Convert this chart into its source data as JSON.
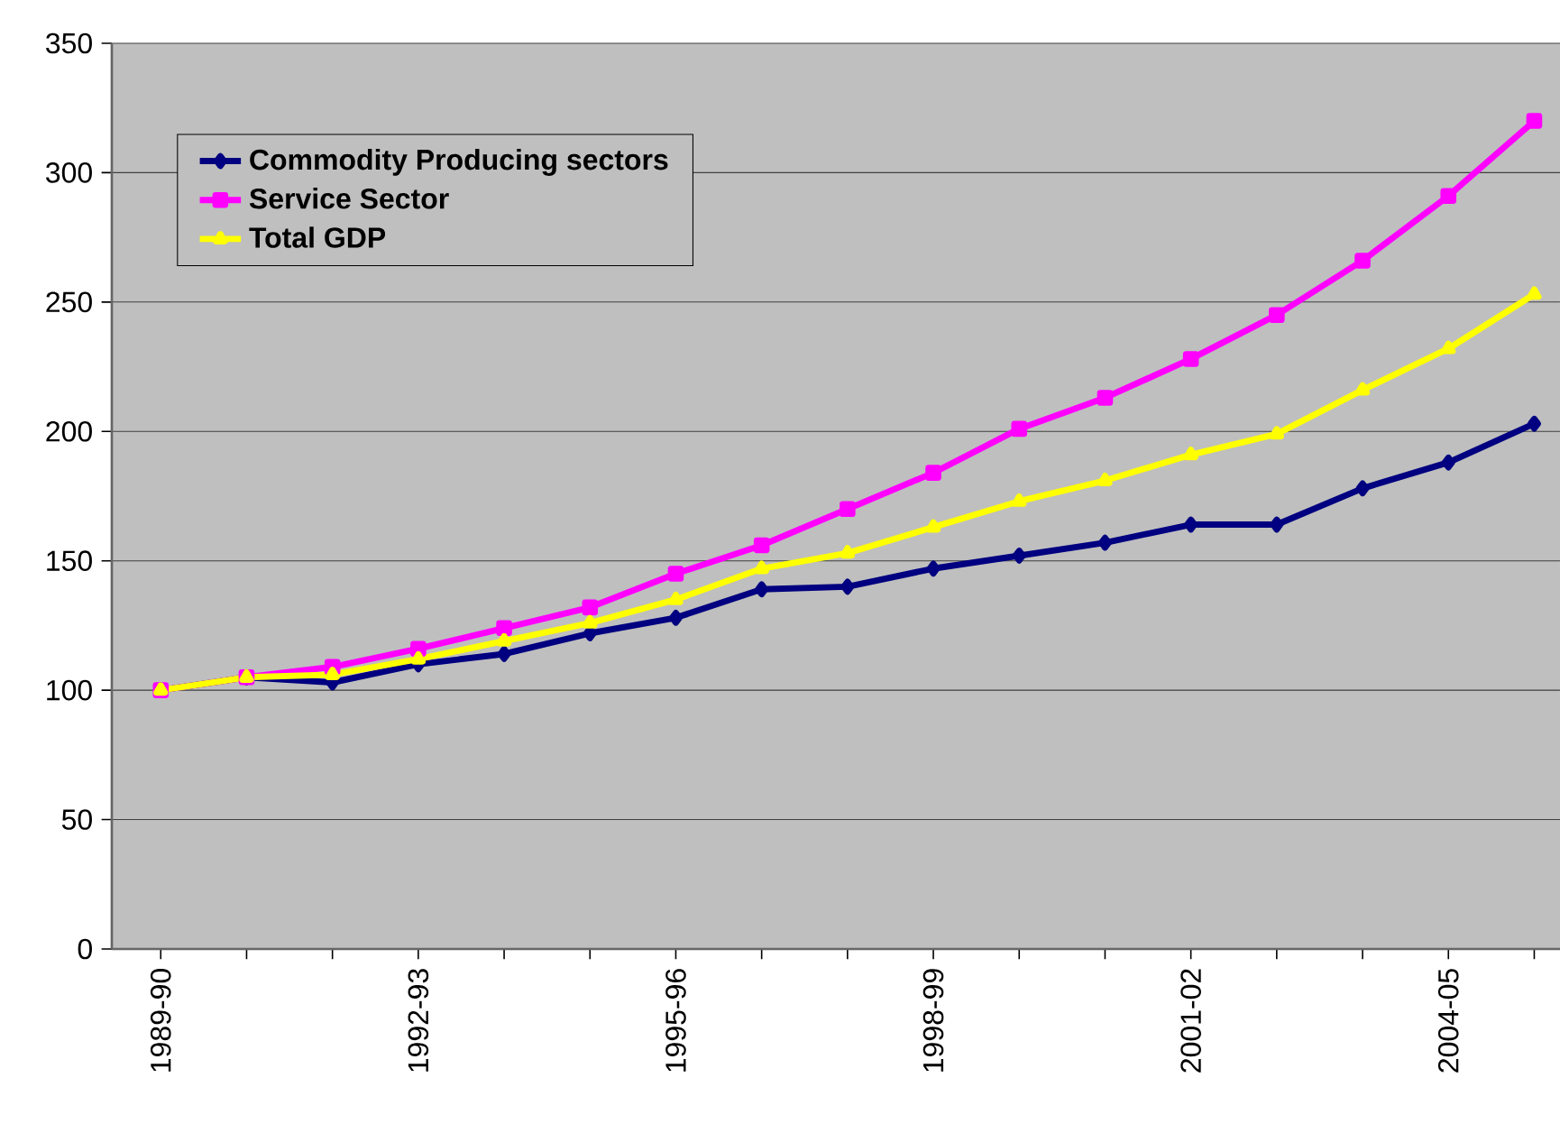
{
  "chart_data": {
    "type": "line",
    "categories": [
      "1989-90",
      null,
      null,
      "1992-93",
      null,
      null,
      "1995-96",
      null,
      null,
      "1998-99",
      null,
      null,
      "2001-02",
      null,
      null,
      "2004-05",
      null
    ],
    "series": [
      {
        "name": "Commodity Producing sectors",
        "color": "#000080",
        "marker": "diamond",
        "values": [
          100,
          105,
          103,
          110,
          114,
          122,
          128,
          139,
          140,
          147,
          152,
          157,
          164,
          164,
          178,
          188,
          203
        ]
      },
      {
        "name": "Service Sector",
        "color": "#ff00ff",
        "marker": "square",
        "values": [
          100,
          105,
          109,
          116,
          124,
          132,
          145,
          156,
          170,
          184,
          201,
          213,
          228,
          245,
          266,
          291,
          320
        ]
      },
      {
        "name": "Total GDP",
        "color": "#ffff00",
        "marker": "triangle",
        "values": [
          100,
          105,
          106,
          112,
          119,
          126,
          135,
          147,
          153,
          163,
          173,
          181,
          191,
          199,
          216,
          232,
          253
        ]
      }
    ],
    "ylim": [
      0,
      350
    ],
    "yticks": [
      0,
      50,
      100,
      150,
      200,
      250,
      300,
      350
    ],
    "grid": "y",
    "legend": "top left"
  }
}
